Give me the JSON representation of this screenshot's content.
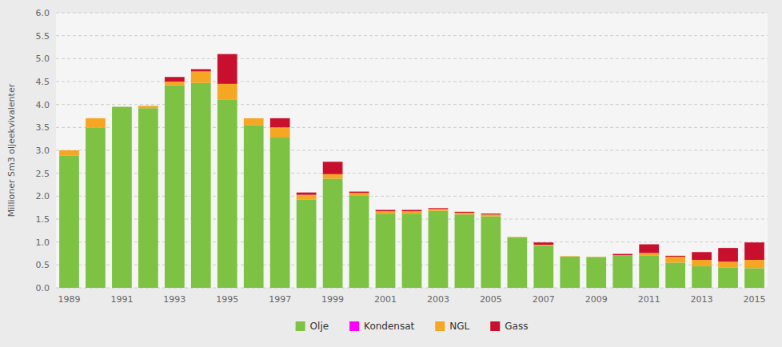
{
  "chart_data": {
    "type": "bar",
    "stacked": true,
    "y_label": "Millioner Sm3 oljeekvivalenter",
    "categories": [
      "1989",
      null,
      "1991",
      null,
      "1993",
      null,
      "1995",
      null,
      "1997",
      null,
      "1999",
      null,
      "2001",
      null,
      "2003",
      null,
      "2005",
      null,
      "2007",
      null,
      "2009",
      null,
      "2011",
      null,
      "2013",
      null,
      "2015"
    ],
    "series": [
      {
        "name": "Olje",
        "color": "#7DC242",
        "values": [
          2.88,
          3.5,
          3.95,
          3.92,
          4.42,
          4.47,
          4.1,
          3.55,
          3.28,
          1.93,
          2.38,
          2.02,
          1.62,
          1.62,
          1.68,
          1.6,
          1.56,
          1.1,
          0.92,
          0.68,
          0.67,
          0.7,
          0.71,
          0.55,
          0.47,
          0.44,
          0.43
        ]
      },
      {
        "name": "Kondensat",
        "color": "#FF00FF",
        "values": [
          0.0,
          0.0,
          0.0,
          0.0,
          0.0,
          0.0,
          0.0,
          0.0,
          0.0,
          0.0,
          0.0,
          0.0,
          0.0,
          0.0,
          0.0,
          0.0,
          0.0,
          0.0,
          0.0,
          0.0,
          0.0,
          0.0,
          0.0,
          0.0,
          0.0,
          0.0,
          0.0
        ]
      },
      {
        "name": "NGL",
        "color": "#F5A623",
        "values": [
          0.12,
          0.2,
          0.0,
          0.05,
          0.08,
          0.25,
          0.35,
          0.15,
          0.22,
          0.1,
          0.1,
          0.05,
          0.05,
          0.05,
          0.04,
          0.04,
          0.04,
          0.01,
          0.02,
          0.01,
          0.01,
          0.01,
          0.05,
          0.13,
          0.14,
          0.13,
          0.18
        ]
      },
      {
        "name": "Gass",
        "color": "#C8102E",
        "values": [
          0.0,
          0.0,
          0.0,
          0.0,
          0.1,
          0.05,
          0.65,
          0.0,
          0.2,
          0.05,
          0.27,
          0.03,
          0.03,
          0.03,
          0.02,
          0.02,
          0.02,
          0.0,
          0.05,
          0.0,
          0.0,
          0.03,
          0.19,
          0.02,
          0.17,
          0.3,
          0.38
        ]
      }
    ],
    "ylim": [
      0,
      6.0
    ],
    "yticks": [
      {
        "value": 0.0,
        "label": "0.0"
      },
      0.5,
      {
        "value": 1.0,
        "label": "1.0"
      },
      1.5,
      {
        "value": 2.0,
        "label": "2.0"
      },
      2.5,
      {
        "value": 3.0,
        "label": "3.0"
      },
      3.5,
      {
        "value": 4.0,
        "label": "4.0"
      },
      4.5,
      {
        "value": 5.0,
        "label": "5.0"
      },
      5.5,
      {
        "value": 6.0,
        "label": "6.0"
      }
    ],
    "grid": true,
    "legend": "bottom"
  }
}
